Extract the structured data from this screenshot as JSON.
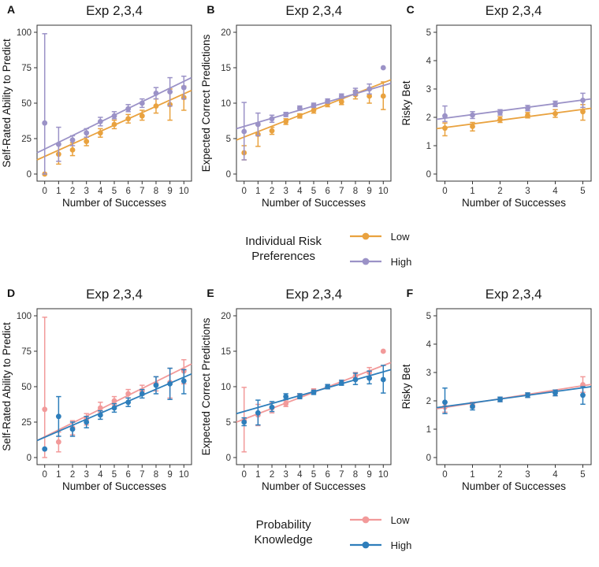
{
  "legends": [
    {
      "title": "Individual Risk Preferences",
      "items": [
        {
          "label": "Low",
          "color": "#E9A23F"
        },
        {
          "label": "High",
          "color": "#9B92C7"
        }
      ]
    },
    {
      "title": "Probability Knowledge",
      "items": [
        {
          "label": "Low",
          "color": "#F29A9A"
        },
        {
          "label": "High",
          "color": "#2E7EBB"
        }
      ]
    }
  ],
  "chart_data": [
    {
      "panel_label": "A",
      "type": "scatter",
      "title": "Exp 2,3,4",
      "xlabel": "Number of Successes",
      "ylabel": "Self-Rated Ability to Predict",
      "x": [
        0,
        1,
        2,
        3,
        4,
        5,
        6,
        7,
        8,
        9,
        10
      ],
      "xticks": [
        0,
        1,
        2,
        3,
        4,
        5,
        6,
        7,
        8,
        9,
        10
      ],
      "yticks": [
        0,
        25,
        50,
        75,
        100
      ],
      "xlim": [
        -0.55,
        10.55
      ],
      "ylim": [
        -5,
        105
      ],
      "series": [
        {
          "name": "Low",
          "color": "#E9A23F",
          "y": [
            0,
            14,
            17,
            23,
            29,
            35,
            39,
            41,
            48,
            49,
            54
          ],
          "lo": [
            0,
            7,
            13,
            20,
            26,
            32,
            36,
            38,
            43,
            38,
            45
          ],
          "hi": [
            0,
            21,
            22,
            26,
            32,
            38,
            42,
            45,
            53,
            60,
            62
          ],
          "fit_y": [
            10,
            59
          ]
        },
        {
          "name": "High",
          "color": "#9B92C7",
          "y": [
            36,
            21,
            24,
            29,
            37,
            41,
            46,
            50,
            57,
            58,
            61
          ],
          "lo": [
            0,
            9,
            20,
            26,
            34,
            39,
            44,
            47,
            53,
            48,
            53
          ],
          "hi": [
            99,
            33,
            27,
            32,
            40,
            44,
            49,
            53,
            61,
            68,
            69
          ],
          "fit_y": [
            15,
            68
          ]
        }
      ]
    },
    {
      "panel_label": "B",
      "type": "scatter",
      "title": "Exp 2,3,4",
      "xlabel": "Number of Successes",
      "ylabel": "Expected Correct Predictions",
      "x": [
        0,
        1,
        2,
        3,
        4,
        5,
        6,
        7,
        8,
        9,
        10
      ],
      "xticks": [
        0,
        1,
        2,
        3,
        4,
        5,
        6,
        7,
        8,
        9,
        10
      ],
      "yticks": [
        0,
        5,
        10,
        15,
        20
      ],
      "xlim": [
        -0.55,
        10.55
      ],
      "ylim": [
        -1,
        21
      ],
      "series": [
        {
          "name": "Low",
          "color": "#E9A23F",
          "y": [
            3,
            5.6,
            6.1,
            7.4,
            8.2,
            9,
            9.9,
            10.2,
            11.2,
            11,
            11
          ],
          "lo": [
            2,
            3.9,
            5.6,
            7,
            7.9,
            8.6,
            9.5,
            9.8,
            10.6,
            10,
            9.1
          ],
          "hi": [
            4,
            7.1,
            6.6,
            7.8,
            8.5,
            9.4,
            10.3,
            10.6,
            11.8,
            12,
            13
          ],
          "fit_y": [
            4.8,
            13.3
          ]
        },
        {
          "name": "High",
          "color": "#9B92C7",
          "y": [
            6,
            7,
            7.8,
            8.4,
            9.3,
            9.7,
            10.3,
            11,
            11.6,
            12,
            15
          ],
          "lo": [
            2,
            5.4,
            7.3,
            8.1,
            9,
            9.4,
            10,
            10.7,
            11.1,
            11.3,
            15
          ],
          "hi": [
            10.1,
            8.6,
            8.3,
            8.7,
            9.6,
            10,
            10.6,
            11.3,
            12.1,
            12.7,
            15
          ],
          "fit_y": [
            6.4,
            12.8
          ]
        }
      ]
    },
    {
      "panel_label": "C",
      "type": "scatter",
      "title": "Exp 2,3,4",
      "xlabel": "Number of Successes",
      "ylabel": "Risky Bet",
      "x": [
        0,
        1,
        2,
        3,
        4,
        5
      ],
      "xticks": [
        0,
        1,
        2,
        3,
        4,
        5
      ],
      "yticks": [
        0,
        1,
        2,
        3,
        4,
        5
      ],
      "xlim": [
        -0.3,
        5.3
      ],
      "ylim": [
        -0.25,
        5.25
      ],
      "series": [
        {
          "name": "Low",
          "color": "#E9A23F",
          "y": [
            1.62,
            1.68,
            1.92,
            2.07,
            2.13,
            2.2
          ],
          "lo": [
            1.35,
            1.52,
            1.82,
            1.98,
            2.0,
            1.9
          ],
          "hi": [
            1.8,
            1.82,
            2.02,
            2.17,
            2.27,
            2.45
          ],
          "fit_y": [
            1.6,
            2.32
          ]
        },
        {
          "name": "High",
          "color": "#9B92C7",
          "y": [
            2.05,
            2.08,
            2.17,
            2.32,
            2.47,
            2.6
          ],
          "lo": [
            1.85,
            1.96,
            2.08,
            2.23,
            2.38,
            2.35
          ],
          "hi": [
            2.4,
            2.2,
            2.27,
            2.42,
            2.57,
            2.85
          ],
          "fit_y": [
            1.93,
            2.65
          ]
        }
      ]
    },
    {
      "panel_label": "D",
      "type": "scatter",
      "title": "Exp 2,3,4",
      "xlabel": "Number of Successes",
      "ylabel": "Self-Rated Ability to Predict",
      "x": [
        0,
        1,
        2,
        3,
        4,
        5,
        6,
        7,
        8,
        9,
        10
      ],
      "xticks": [
        0,
        1,
        2,
        3,
        4,
        5,
        6,
        7,
        8,
        9,
        10
      ],
      "yticks": [
        0,
        25,
        50,
        75,
        100
      ],
      "xlim": [
        -0.55,
        10.55
      ],
      "ylim": [
        -5,
        105
      ],
      "series": [
        {
          "name": "Low",
          "color": "#F29A9A",
          "y": [
            34,
            11,
            21,
            27,
            35,
            40,
            45,
            47,
            52,
            53,
            61
          ],
          "lo": [
            0,
            4,
            16,
            23,
            32,
            37,
            42,
            44,
            47,
            42,
            52
          ],
          "hi": [
            99,
            18,
            26,
            31,
            39,
            43,
            48,
            51,
            57,
            63,
            69
          ],
          "fit_y": [
            12,
            66
          ]
        },
        {
          "name": "High",
          "color": "#2E7EBB",
          "y": [
            6,
            29,
            20,
            25,
            30,
            35,
            39,
            45,
            51,
            52,
            54
          ],
          "lo": [
            6,
            15,
            15,
            21,
            27,
            32,
            36,
            42,
            45,
            41,
            45
          ],
          "hi": [
            6,
            43,
            25,
            29,
            33,
            38,
            42,
            48,
            57,
            63,
            62
          ],
          "fit_y": [
            12,
            59
          ]
        }
      ]
    },
    {
      "panel_label": "E",
      "type": "scatter",
      "title": "Exp 2,3,4",
      "xlabel": "Number of Successes",
      "ylabel": "Expected Correct Predictions",
      "x": [
        0,
        1,
        2,
        3,
        4,
        5,
        6,
        7,
        8,
        9,
        10
      ],
      "xticks": [
        0,
        1,
        2,
        3,
        4,
        5,
        6,
        7,
        8,
        9,
        10
      ],
      "yticks": [
        0,
        5,
        10,
        15,
        20
      ],
      "xlim": [
        -0.55,
        10.55
      ],
      "ylim": [
        -1,
        21
      ],
      "series": [
        {
          "name": "Low",
          "color": "#F29A9A",
          "y": [
            5.2,
            6,
            7,
            7.6,
            8.7,
            9.4,
            10,
            10.6,
            11.5,
            12,
            15
          ],
          "lo": [
            0.8,
            4.5,
            6.3,
            7.2,
            8.4,
            9.1,
            9.7,
            10.3,
            11,
            11.3,
            15
          ],
          "hi": [
            9.9,
            7.5,
            7.7,
            8,
            9,
            9.7,
            10.3,
            10.9,
            12,
            12.7,
            15
          ],
          "fit_y": [
            5.0,
            13.4
          ]
        },
        {
          "name": "High",
          "color": "#2E7EBB",
          "y": [
            5,
            6.3,
            7.1,
            8.6,
            8.6,
            9.2,
            10,
            10.5,
            11,
            11.2,
            11
          ],
          "lo": [
            4.5,
            4.6,
            6.5,
            8.2,
            8.3,
            8.9,
            9.7,
            10.2,
            10.3,
            10.4,
            9.1
          ],
          "hi": [
            5.6,
            8.1,
            7.9,
            9,
            9,
            9.5,
            10.3,
            10.9,
            11.9,
            12.2,
            13
          ],
          "fit_y": [
            6.2,
            12.4
          ]
        }
      ]
    },
    {
      "panel_label": "F",
      "type": "scatter",
      "title": "Exp 2,3,4",
      "xlabel": "Number of Successes",
      "ylabel": "Risky Bet",
      "x": [
        0,
        1,
        2,
        3,
        4,
        5
      ],
      "xticks": [
        0,
        1,
        2,
        3,
        4,
        5
      ],
      "yticks": [
        0,
        1,
        2,
        3,
        4,
        5
      ],
      "xlim": [
        -0.3,
        5.3
      ],
      "ylim": [
        -0.25,
        5.25
      ],
      "series": [
        {
          "name": "Low",
          "color": "#F29A9A",
          "y": [
            1.78,
            1.85,
            2.05,
            2.2,
            2.28,
            2.57
          ],
          "lo": [
            1.6,
            1.75,
            1.97,
            2.12,
            2.18,
            2.3
          ],
          "hi": [
            1.95,
            1.95,
            2.13,
            2.28,
            2.38,
            2.85
          ],
          "fit_y": [
            1.72,
            2.58
          ]
        },
        {
          "name": "High",
          "color": "#2E7EBB",
          "y": [
            1.95,
            1.8,
            2.05,
            2.2,
            2.28,
            2.2
          ],
          "lo": [
            1.55,
            1.68,
            1.97,
            2.12,
            2.18,
            1.88
          ],
          "hi": [
            2.45,
            1.92,
            2.13,
            2.28,
            2.38,
            2.5
          ],
          "fit_y": [
            1.76,
            2.5
          ]
        }
      ]
    }
  ]
}
